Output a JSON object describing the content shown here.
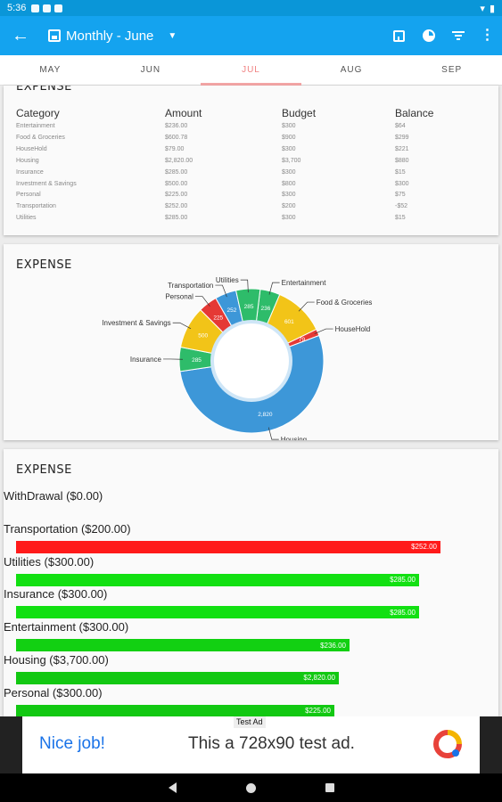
{
  "status": {
    "time": "5:36"
  },
  "appbar": {
    "title": "Monthly - June"
  },
  "tabs": [
    {
      "label": "MAY"
    },
    {
      "label": "JUN"
    },
    {
      "label": "JUL"
    },
    {
      "label": "AUG"
    },
    {
      "label": "SEP"
    }
  ],
  "table_card": {
    "title": "EXPENSE",
    "headers": [
      "Category",
      "Amount",
      "Budget",
      "Balance"
    ],
    "rows": [
      [
        "Entertainment",
        "$236.00",
        "$300",
        "$64"
      ],
      [
        "Food & Groceries",
        "$600.78",
        "$900",
        "$299"
      ],
      [
        "HouseHold",
        "$79.00",
        "$300",
        "$221"
      ],
      [
        "Housing",
        "$2,820.00",
        "$3,700",
        "$880"
      ],
      [
        "Insurance",
        "$285.00",
        "$300",
        "$15"
      ],
      [
        "Investment & Savings",
        "$500.00",
        "$800",
        "$300"
      ],
      [
        "Personal",
        "$225.00",
        "$300",
        "$75"
      ],
      [
        "Transportation",
        "$252.00",
        "$200",
        "-$52"
      ],
      [
        "Utilities",
        "$285.00",
        "$300",
        "$15"
      ]
    ]
  },
  "donut_card": {
    "title": "EXPENSE"
  },
  "chart_data": {
    "type": "pie",
    "donut": true,
    "slices": [
      {
        "name": "Entertainment",
        "value": 236,
        "label": "236",
        "color": "#2ebc6a"
      },
      {
        "name": "Food & Groceries",
        "value": 601,
        "label": "601",
        "color": "#f2c418"
      },
      {
        "name": "HouseHold",
        "value": 79,
        "label": "79",
        "color": "#e53935"
      },
      {
        "name": "Housing",
        "value": 2820,
        "label": "2,820",
        "color": "#3d97d8"
      },
      {
        "name": "Insurance",
        "value": 285,
        "label": "285",
        "color": "#2ebc6a"
      },
      {
        "name": "Investment & Savings",
        "value": 500,
        "label": "500",
        "color": "#f2c418"
      },
      {
        "name": "Personal",
        "value": 225,
        "label": "225",
        "color": "#e53935"
      },
      {
        "name": "Transportation",
        "value": 252,
        "label": "252",
        "color": "#3d97d8"
      },
      {
        "name": "Utilities",
        "value": 285,
        "label": "285",
        "color": "#2ebc6a"
      }
    ]
  },
  "bars_card": {
    "title": "EXPENSE",
    "withdrawal": "WithDrawal ($0.00)",
    "scale_max": 3000,
    "items": [
      {
        "label": "Transportation ($200.00)",
        "value": 252,
        "value_label": "$252.00",
        "color": "#ff1a1a"
      },
      {
        "label": "Utilities ($300.00)",
        "value": 285,
        "value_label": "$285.00",
        "color": "#12e012"
      },
      {
        "label": "Insurance ($300.00)",
        "value": 285,
        "value_label": "$285.00",
        "color": "#12e012"
      },
      {
        "label": "Entertainment ($300.00)",
        "value": 236,
        "value_label": "$236.00",
        "color": "#12d012"
      },
      {
        "label": "Housing ($3,700.00)",
        "value": 2820,
        "value_label": "$2,820.00",
        "color": "#12c812"
      },
      {
        "label": "Personal ($300.00)",
        "value": 225,
        "value_label": "$225.00",
        "color": "#12c812"
      }
    ]
  },
  "ad": {
    "badge": "Test Ad",
    "headline": "Nice job!",
    "body": "This a 728x90 test ad."
  }
}
